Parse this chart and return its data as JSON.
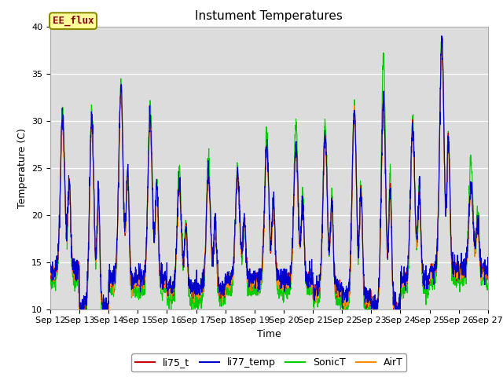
{
  "title": "Instument Temperatures",
  "xlabel": "Time",
  "ylabel": "Temperature (C)",
  "ylim": [
    10,
    40
  ],
  "yticks": [
    10,
    15,
    20,
    25,
    30,
    35,
    40
  ],
  "x_labels": [
    "Sep 12",
    "Sep 13",
    "Sep 14",
    "Sep 15",
    "Sep 16",
    "Sep 17",
    "Sep 18",
    "Sep 19",
    "Sep 20",
    "Sep 21",
    "Sep 22",
    "Sep 23",
    "Sep 24",
    "Sep 25",
    "Sep 26",
    "Sep 27"
  ],
  "annotation": "EE_flux",
  "annotation_color": "#8B0000",
  "annotation_bg": "#FFFF99",
  "annotation_border": "#8B8B00",
  "colors": {
    "li75_t": "#CC0000",
    "li77_temp": "#0000CC",
    "SonicT": "#00CC00",
    "AirT": "#FF8C00"
  },
  "legend_labels": [
    "li75_t",
    "li77_temp",
    "SonicT",
    "AirT"
  ],
  "fig_bg": "#FFFFFF",
  "plot_bg": "#DCDCDC",
  "grid_color": "#FFFFFF",
  "title_fontsize": 11,
  "tick_fontsize": 8,
  "label_fontsize": 9
}
